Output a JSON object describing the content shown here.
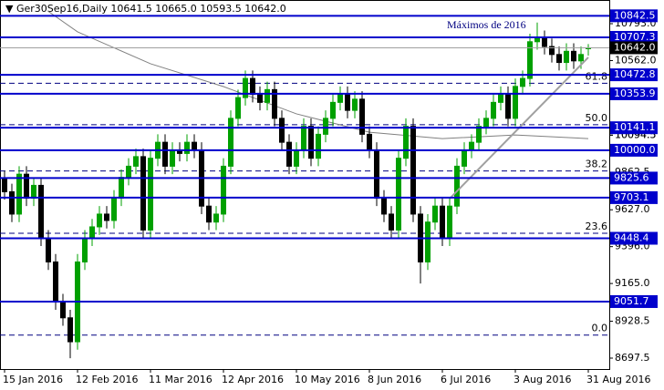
{
  "chart_data": {
    "type": "candlestick",
    "title": "▼ Ger30Sep16,Daily  10641.5 10665.0 10593.5 10642.0",
    "annotation": "Máximos de 2016",
    "categories": [
      "15 Jan 2016",
      null,
      null,
      null,
      null,
      null,
      null,
      null,
      null,
      null,
      "12 Feb 2016",
      null,
      null,
      null,
      null,
      null,
      null,
      null,
      null,
      null,
      "11 Mar 2016",
      null,
      null,
      null,
      null,
      null,
      null,
      null,
      null,
      null,
      "12 Apr 2016",
      null,
      null,
      null,
      null,
      null,
      null,
      null,
      null,
      null,
      "10 May 2016",
      null,
      null,
      null,
      null,
      null,
      null,
      null,
      null,
      null,
      "8 Jun 2016",
      null,
      null,
      null,
      null,
      null,
      null,
      null,
      null,
      null,
      "6 Jul 2016",
      null,
      null,
      null,
      null,
      null,
      null,
      null,
      null,
      null,
      "3 Aug 2016",
      null,
      null,
      null,
      null,
      null,
      null,
      null,
      null,
      null,
      "31 Aug 2016"
    ],
    "open": [
      9820,
      9740,
      9600,
      9850,
      9700,
      9780,
      9450,
      9300,
      9050,
      8950,
      8800,
      9300,
      9450,
      9520,
      9600,
      9560,
      9700,
      9830,
      9900,
      9960,
      9500,
      9950,
      10050,
      9900,
      10000,
      9980,
      10050,
      10000,
      9650,
      9550,
      9600,
      9900,
      10200,
      10330,
      10450,
      10350,
      10300,
      10380,
      10200,
      10050,
      9900,
      10000,
      10150,
      9950,
      10100,
      10200,
      10300,
      10350,
      10250,
      10320,
      10100,
      10000,
      9700,
      9600,
      9500,
      9950,
      10150,
      9600,
      9300,
      9550,
      9650,
      9450,
      9650,
      9900,
      10000,
      10050,
      10150,
      10200,
      10300,
      10350,
      10200,
      10400,
      10450,
      10680,
      10700,
      10650,
      10600,
      10550,
      10620,
      10560,
      10641.5
    ],
    "high": [
      9870,
      9790,
      9900,
      9900,
      9830,
      9830,
      9500,
      9350,
      9100,
      9000,
      9350,
      9500,
      9570,
      9650,
      9650,
      9750,
      9880,
      9950,
      10010,
      10010,
      10000,
      10100,
      10100,
      10050,
      10050,
      10100,
      10100,
      10050,
      9700,
      9650,
      9950,
      10250,
      10380,
      10500,
      10500,
      10400,
      10430,
      10430,
      10250,
      10100,
      10050,
      10200,
      10200,
      10150,
      10250,
      10350,
      10400,
      10400,
      10370,
      10370,
      10150,
      10050,
      9750,
      9650,
      10000,
      10200,
      10200,
      9650,
      9600,
      9700,
      9700,
      9700,
      9950,
      10050,
      10100,
      10200,
      10250,
      10350,
      10400,
      10400,
      10450,
      10500,
      10730,
      10800,
      10750,
      10700,
      10650,
      10670,
      10670,
      10650,
      10665
    ],
    "low": [
      9690,
      9550,
      9550,
      9650,
      9650,
      9400,
      9250,
      9000,
      8900,
      8697,
      8750,
      9250,
      9400,
      9470,
      9510,
      9510,
      9650,
      9780,
      9850,
      9450,
      9450,
      9900,
      9850,
      9850,
      9930,
      9930,
      9950,
      9600,
      9500,
      9500,
      9550,
      9850,
      10150,
      10280,
      10300,
      10250,
      10250,
      10150,
      10000,
      9850,
      9850,
      9950,
      9900,
      9900,
      10050,
      10150,
      10250,
      10200,
      10200,
      10050,
      9950,
      9650,
      9550,
      9450,
      9450,
      9900,
      9550,
      9165,
      9250,
      9500,
      9400,
      9400,
      9600,
      9850,
      9950,
      10000,
      10100,
      10150,
      10250,
      10150,
      10150,
      10350,
      10400,
      10630,
      10600,
      10550,
      10500,
      10500,
      10510,
      10510,
      10593.5
    ],
    "close": [
      9740,
      9600,
      9850,
      9700,
      9780,
      9450,
      9300,
      9050,
      8950,
      8800,
      9300,
      9450,
      9520,
      9600,
      9560,
      9700,
      9830,
      9900,
      9960,
      9500,
      9950,
      10050,
      9900,
      10000,
      9980,
      10050,
      10000,
      9650,
      9550,
      9600,
      9900,
      10200,
      10330,
      10450,
      10350,
      10300,
      10380,
      10200,
      10050,
      9900,
      10000,
      10150,
      9950,
      10100,
      10200,
      10300,
      10350,
      10250,
      10320,
      10100,
      10000,
      9700,
      9600,
      9500,
      9950,
      10150,
      9600,
      9300,
      9550,
      9650,
      9450,
      9650,
      9900,
      10000,
      10050,
      10150,
      10200,
      10300,
      10350,
      10200,
      10400,
      10450,
      10680,
      10700,
      10650,
      10600,
      10550,
      10620,
      10560,
      10600,
      10642
    ],
    "up_color": "#00a000",
    "down_color": "#000000",
    "moving_average": {
      "color": "#808080",
      "x": [
        6,
        10,
        20,
        30,
        40,
        50,
        60,
        70,
        80
      ],
      "values": [
        10870,
        10742,
        10542,
        10399,
        10228,
        10113,
        10073,
        10096,
        10073
      ]
    },
    "trendline": {
      "color": "#a0a0a0",
      "x": [
        61,
        80
      ],
      "values": [
        9697,
        10582
      ]
    },
    "ylim": [
      8629,
      10941.5
    ],
    "yticks": [
      {
        "value": 10793,
        "label": "10793.0"
      },
      {
        "value": 10562,
        "label": "10562.0"
      },
      10094.5,
      10094.5,
      9862.5,
      {
        "value": 9627,
        "label": "9627.0"
      },
      {
        "value": 9396,
        "label": "9396.0"
      },
      {
        "value": 9165,
        "label": "9165.0"
      },
      8928.5,
      8697.5
    ],
    "levels": [
      10842.5,
      10707.3,
      10472.8,
      10353.9,
      10141.1,
      {
        "value": 10000,
        "label": "10000.0"
      },
      9825.6,
      9703.1,
      9448.4,
      9051.7
    ],
    "level_color": "#0000cc",
    "current_price": {
      "value": 10642,
      "label": "10642.0"
    },
    "fibonacci": [
      {
        "value": 10420,
        "label": "61.8"
      },
      {
        "value": 10160,
        "label": "50.0"
      },
      {
        "value": 9870,
        "label": "38.2"
      },
      {
        "value": 9480,
        "label": "23.6"
      },
      {
        "value": 8842,
        "label": "0.0"
      }
    ]
  }
}
